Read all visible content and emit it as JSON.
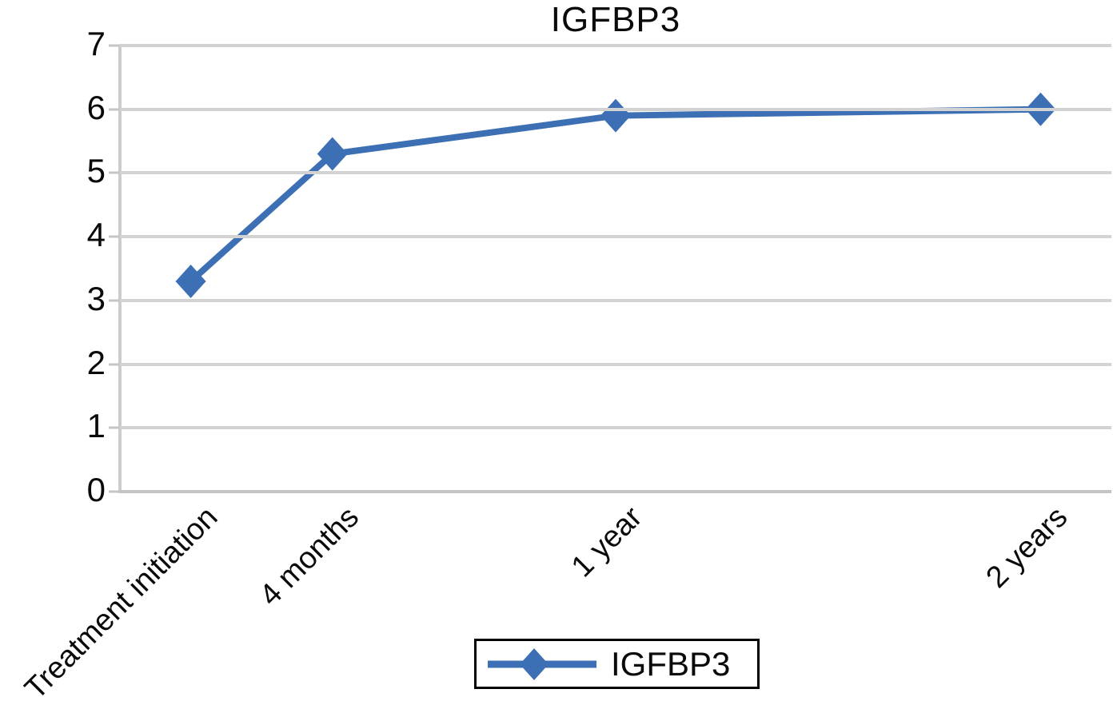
{
  "chart_data": {
    "type": "line",
    "title": "IGFBP3",
    "categories": [
      "Treatment initiation",
      "4 months",
      "1 year",
      "2 years"
    ],
    "x_months": [
      0,
      4,
      12,
      24
    ],
    "series": [
      {
        "name": "IGFBP3",
        "values": [
          3.3,
          5.3,
          5.9,
          6.0
        ]
      }
    ],
    "ylabel": "",
    "xlabel": "",
    "ylim": [
      0,
      7
    ],
    "y_ticks": [
      0,
      1,
      2,
      3,
      4,
      5,
      6,
      7
    ],
    "xlim_months": [
      -2,
      26
    ],
    "grid": true,
    "marker": "diamond",
    "legend": {
      "label": "IGFBP3",
      "position": "bottom-center"
    },
    "colors": {
      "line": "#3d6fb5",
      "gridline": "#d2d2d2",
      "axis": "#c6c6c6",
      "text": "#0a0a0a",
      "background": "#ffffff"
    }
  }
}
